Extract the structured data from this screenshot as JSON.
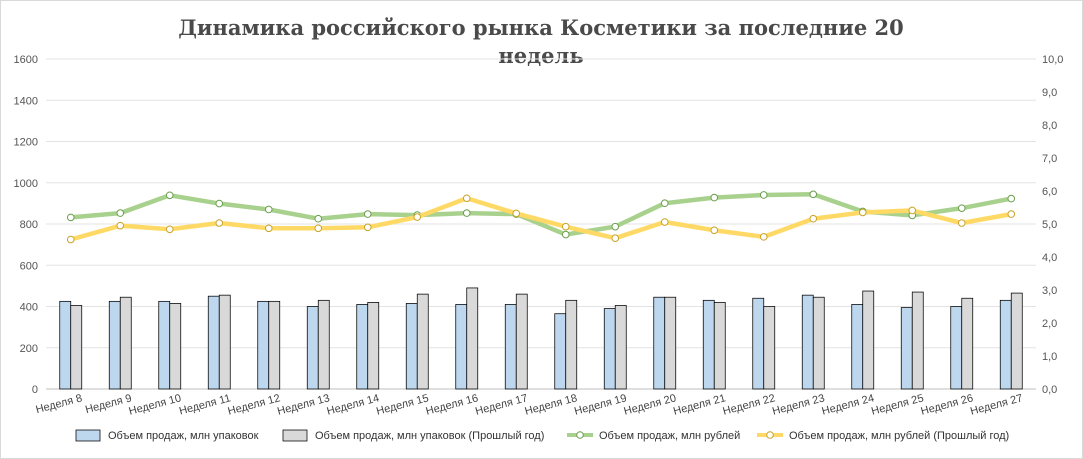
{
  "chart_data": {
    "type": "bar+line",
    "title": "Динамика российского рынка Косметики за последние 20 недель",
    "categories": [
      "Неделя 8",
      "Неделя 9",
      "Неделя 10",
      "Неделя 11",
      "Неделя 12",
      "Неделя 13",
      "Неделя 14",
      "Неделя 15",
      "Неделя 16",
      "Неделя 17",
      "Неделя 18",
      "Неделя 19",
      "Неделя 20",
      "Неделя 21",
      "Неделя 22",
      "Неделя 23",
      "Неделя 24",
      "Неделя 25",
      "Неделя 26",
      "Неделя 27"
    ],
    "y_left": {
      "min": 0,
      "max": 1600,
      "step": 200,
      "ticks": [
        "0",
        "200",
        "400",
        "600",
        "800",
        "1000",
        "1200",
        "1400",
        "1600"
      ]
    },
    "y_right": {
      "min": 0,
      "max": 10,
      "step": 1,
      "ticks": [
        "0,0",
        "1,0",
        "2,0",
        "3,0",
        "4,0",
        "5,0",
        "6,0",
        "7,0",
        "8,0",
        "9,0",
        "10,0"
      ]
    },
    "series": [
      {
        "name": "Объем продаж, млн упаковок",
        "type": "bar",
        "axis": "left",
        "color": "#bdd7ee",
        "values": [
          425,
          425,
          425,
          450,
          425,
          400,
          410,
          415,
          410,
          410,
          365,
          390,
          445,
          430,
          440,
          455,
          410,
          395,
          400,
          430
        ]
      },
      {
        "name": "Объем продаж, млн упаковок (Прошлый год)",
        "type": "bar",
        "axis": "left",
        "color": "#d9d9d9",
        "values": [
          405,
          445,
          415,
          455,
          425,
          430,
          420,
          460,
          490,
          460,
          430,
          405,
          445,
          420,
          400,
          445,
          475,
          470,
          440,
          465
        ]
      },
      {
        "name": "Объем продаж, млн рублей",
        "type": "line",
        "axis": "right",
        "color": "#a9d18e",
        "values": [
          5.2,
          5.33,
          5.87,
          5.62,
          5.44,
          5.16,
          5.3,
          5.27,
          5.33,
          5.3,
          4.68,
          4.92,
          5.63,
          5.8,
          5.88,
          5.9,
          5.38,
          5.26,
          5.48,
          5.77
        ]
      },
      {
        "name": "Объем продаж, млн рублей (Прошлый год)",
        "type": "line",
        "axis": "right",
        "color": "#ffd966",
        "values": [
          4.53,
          4.95,
          4.84,
          5.03,
          4.87,
          4.87,
          4.9,
          5.21,
          5.78,
          5.32,
          4.92,
          4.57,
          5.06,
          4.81,
          4.61,
          5.16,
          5.35,
          5.41,
          5.03,
          5.3
        ]
      }
    ],
    "grid": true,
    "legend_position": "bottom"
  }
}
